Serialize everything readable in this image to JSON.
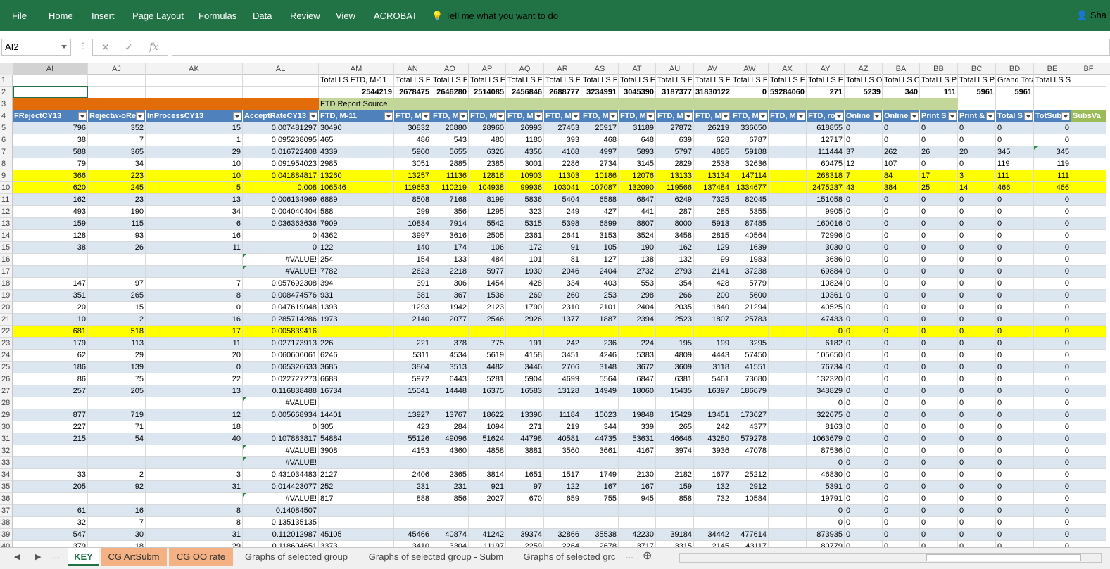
{
  "ribbon": {
    "tabs": [
      "File",
      "Home",
      "Insert",
      "Page Layout",
      "Formulas",
      "Data",
      "Review",
      "View",
      "ACROBAT"
    ],
    "tell_me": "Tell me what you want to do",
    "share": "Sha"
  },
  "formula_bar": {
    "name_box": "AI2",
    "formula": ""
  },
  "columns": [
    "AI",
    "AJ",
    "AK",
    "AL",
    "AM",
    "AN",
    "AO",
    "AP",
    "AQ",
    "AR",
    "AS",
    "AT",
    "AU",
    "AV",
    "AW",
    "AX",
    "AY",
    "AZ",
    "BA",
    "BB",
    "BC",
    "BD",
    "BE",
    "BF"
  ],
  "rows": {
    "1": {
      "AM": "Total LS FTD, M-11",
      "AN": "Total LS F",
      "AO": "Total LS F",
      "AP": "Total LS F",
      "AQ": "Total LS F",
      "AR": "Total LS F",
      "AS": "Total LS F",
      "AT": "Total LS F",
      "AU": "Total LS F",
      "AV": "Total LS F",
      "AW": "Total LS F",
      "AX": "Total LS F",
      "AY": "Total LS F",
      "AZ": "Total LS O",
      "BA": "Total LS O",
      "BB": "Total LS P",
      "BC": "Total LS P",
      "BD": "Grand Tota",
      "BE": "Total LS Subscription"
    },
    "2": {
      "AM": "2544219",
      "AN": "2678475",
      "AO": "2646280",
      "AP": "2514085",
      "AQ": "2456846",
      "AR": "2688777",
      "AS": "3234991",
      "AT": "3045390",
      "AU": "3187377",
      "AV": "31830122",
      "AW": "0",
      "AX": "59284060",
      "AY": "271",
      "AZ": "5239",
      "BA": "340",
      "BB": "111",
      "BC": "5961",
      "BD": "5961"
    },
    "3": {
      "AM": "FTD Report Source"
    },
    "4": {
      "AI": "FRejectCY13",
      "AJ": "Rejectw-oRe",
      "AK": "InProcessCY13",
      "AL": "AcceptRateCY13",
      "AM": "FTD, M-11",
      "AN": "FTD, M",
      "AO": "FTD, M",
      "AP": "FTD, M",
      "AQ": "FTD, M",
      "AR": "FTD, M",
      "AS": "FTD, M",
      "AT": "FTD, M",
      "AU": "FTD, M",
      "AV": "FTD, M",
      "AW": "FTD, M",
      "AX": "FTD, M",
      "AY": "FTD, ro",
      "AZ": "Online",
      "BA": "Online",
      "BB": "Print S",
      "BC": "Print &",
      "BD": "Total S",
      "BE": "TotSub",
      "BF": "SubsVa"
    },
    "5": {
      "AI": "796",
      "AJ": "352",
      "AK": "15",
      "AL": "0.007481297",
      "AM": "30490",
      "AN": "30832",
      "AO": "26880",
      "AP": "28960",
      "AQ": "26993",
      "AR": "27453",
      "AS": "25917",
      "AT": "31189",
      "AU": "27872",
      "AV": "26219",
      "AW": "336050",
      "AY": "618855",
      "AZ": "0",
      "BA": "0",
      "BB": "0",
      "BC": "0",
      "BD": "0",
      "BE": "0"
    },
    "6": {
      "AI": "38",
      "AJ": "7",
      "AK": "1",
      "AL": "0.095238095",
      "AM": "465",
      "AN": "486",
      "AO": "543",
      "AP": "480",
      "AQ": "1180",
      "AR": "393",
      "AS": "468",
      "AT": "648",
      "AU": "639",
      "AV": "628",
      "AW": "6787",
      "AY": "12717",
      "AZ": "0",
      "BA": "0",
      "BB": "0",
      "BC": "0",
      "BD": "0",
      "BE": "0"
    },
    "7": {
      "AI": "588",
      "AJ": "365",
      "AK": "29",
      "AL": "0.016722408",
      "AM": "4339",
      "AN": "5900",
      "AO": "5655",
      "AP": "6326",
      "AQ": "4356",
      "AR": "4108",
      "AS": "4997",
      "AT": "5893",
      "AU": "5797",
      "AV": "4885",
      "AW": "59188",
      "AY": "111444",
      "AZ": "37",
      "BA": "262",
      "BB": "26",
      "BC": "20",
      "BD": "345",
      "BE": "345"
    },
    "8": {
      "AI": "79",
      "AJ": "34",
      "AK": "10",
      "AL": "0.091954023",
      "AM": "2985",
      "AN": "3051",
      "AO": "2885",
      "AP": "2385",
      "AQ": "3001",
      "AR": "2286",
      "AS": "2734",
      "AT": "3145",
      "AU": "2829",
      "AV": "2538",
      "AW": "32636",
      "AY": "60475",
      "AZ": "12",
      "BA": "107",
      "BB": "0",
      "BC": "0",
      "BD": "119",
      "BE": "119"
    },
    "9": {
      "AI": "366",
      "AJ": "223",
      "AK": "10",
      "AL": "0.041884817",
      "AM": "13260",
      "AN": "13257",
      "AO": "11136",
      "AP": "12816",
      "AQ": "10903",
      "AR": "11303",
      "AS": "10186",
      "AT": "12076",
      "AU": "13133",
      "AV": "13134",
      "AW": "147114",
      "AY": "268318",
      "AZ": "7",
      "BA": "84",
      "BB": "17",
      "BC": "3",
      "BD": "111",
      "BE": "111"
    },
    "10": {
      "AI": "620",
      "AJ": "245",
      "AK": "5",
      "AL": "0.008",
      "AM": "106546",
      "AN": "119653",
      "AO": "110219",
      "AP": "104938",
      "AQ": "99936",
      "AR": "103041",
      "AS": "107087",
      "AT": "132090",
      "AU": "119566",
      "AV": "137484",
      "AW": "1334677",
      "AY": "2475237",
      "AZ": "43",
      "BA": "384",
      "BB": "25",
      "BC": "14",
      "BD": "466",
      "BE": "466"
    },
    "11": {
      "AI": "162",
      "AJ": "23",
      "AK": "13",
      "AL": "0.006134969",
      "AM": "6889",
      "AN": "8508",
      "AO": "7168",
      "AP": "8199",
      "AQ": "5836",
      "AR": "5404",
      "AS": "6588",
      "AT": "6847",
      "AU": "6249",
      "AV": "7325",
      "AW": "82045",
      "AY": "151058",
      "AZ": "0",
      "BA": "0",
      "BB": "0",
      "BC": "0",
      "BD": "0",
      "BE": "0"
    },
    "12": {
      "AI": "493",
      "AJ": "190",
      "AK": "34",
      "AL": "0.004040404",
      "AM": "588",
      "AN": "299",
      "AO": "356",
      "AP": "1295",
      "AQ": "323",
      "AR": "249",
      "AS": "427",
      "AT": "441",
      "AU": "287",
      "AV": "285",
      "AW": "5355",
      "AY": "9905",
      "AZ": "0",
      "BA": "0",
      "BB": "0",
      "BC": "0",
      "BD": "0",
      "BE": "0"
    },
    "13": {
      "AI": "159",
      "AJ": "115",
      "AK": "6",
      "AL": "0.036363636",
      "AM": "7909",
      "AN": "10834",
      "AO": "7914",
      "AP": "5542",
      "AQ": "5315",
      "AR": "5398",
      "AS": "6899",
      "AT": "8807",
      "AU": "8000",
      "AV": "5913",
      "AW": "87485",
      "AY": "160016",
      "AZ": "0",
      "BA": "0",
      "BB": "0",
      "BC": "0",
      "BD": "0",
      "BE": "0"
    },
    "14": {
      "AI": "128",
      "AJ": "93",
      "AK": "16",
      "AL": "0",
      "AM": "4362",
      "AN": "3997",
      "AO": "3616",
      "AP": "2505",
      "AQ": "2361",
      "AR": "2641",
      "AS": "3153",
      "AT": "3524",
      "AU": "3458",
      "AV": "2815",
      "AW": "40564",
      "AY": "72996",
      "AZ": "0",
      "BA": "0",
      "BB": "0",
      "BC": "0",
      "BD": "0",
      "BE": "0"
    },
    "15": {
      "AI": "38",
      "AJ": "26",
      "AK": "11",
      "AL": "0",
      "AM": "122",
      "AN": "140",
      "AO": "174",
      "AP": "106",
      "AQ": "172",
      "AR": "91",
      "AS": "105",
      "AT": "190",
      "AU": "162",
      "AV": "129",
      "AW": "1639",
      "AY": "3030",
      "AZ": "0",
      "BA": "0",
      "BB": "0",
      "BC": "0",
      "BD": "0",
      "BE": "0"
    },
    "16": {
      "AL": "#VALUE!",
      "AM": "254",
      "AN": "154",
      "AO": "133",
      "AP": "484",
      "AQ": "101",
      "AR": "81",
      "AS": "127",
      "AT": "138",
      "AU": "132",
      "AV": "99",
      "AW": "1983",
      "AY": "3686",
      "AZ": "0",
      "BA": "0",
      "BB": "0",
      "BC": "0",
      "BD": "0",
      "BE": "0"
    },
    "17": {
      "AL": "#VALUE!",
      "AM": "7782",
      "AN": "2623",
      "AO": "2218",
      "AP": "5977",
      "AQ": "1930",
      "AR": "2046",
      "AS": "2404",
      "AT": "2732",
      "AU": "2793",
      "AV": "2141",
      "AW": "37238",
      "AY": "69884",
      "AZ": "0",
      "BA": "0",
      "BB": "0",
      "BC": "0",
      "BD": "0",
      "BE": "0"
    },
    "18": {
      "AI": "147",
      "AJ": "97",
      "AK": "7",
      "AL": "0.057692308",
      "AM": "394",
      "AN": "391",
      "AO": "306",
      "AP": "1454",
      "AQ": "428",
      "AR": "334",
      "AS": "403",
      "AT": "553",
      "AU": "354",
      "AV": "428",
      "AW": "5779",
      "AY": "10824",
      "AZ": "0",
      "BA": "0",
      "BB": "0",
      "BC": "0",
      "BD": "0",
      "BE": "0"
    },
    "19": {
      "AI": "351",
      "AJ": "265",
      "AK": "8",
      "AL": "0.008474576",
      "AM": "931",
      "AN": "381",
      "AO": "367",
      "AP": "1536",
      "AQ": "269",
      "AR": "260",
      "AS": "253",
      "AT": "298",
      "AU": "266",
      "AV": "200",
      "AW": "5600",
      "AY": "10361",
      "AZ": "0",
      "BA": "0",
      "BB": "0",
      "BC": "0",
      "BD": "0",
      "BE": "0"
    },
    "20": {
      "AI": "20",
      "AJ": "15",
      "AK": "0",
      "AL": "0.047619048",
      "AM": "1393",
      "AN": "1293",
      "AO": "1942",
      "AP": "2123",
      "AQ": "1790",
      "AR": "2310",
      "AS": "2101",
      "AT": "2404",
      "AU": "2035",
      "AV": "1840",
      "AW": "21294",
      "AY": "40525",
      "AZ": "0",
      "BA": "0",
      "BB": "0",
      "BC": "0",
      "BD": "0",
      "BE": "0"
    },
    "21": {
      "AI": "10",
      "AJ": "2",
      "AK": "16",
      "AL": "0.285714286",
      "AM": "1973",
      "AN": "2140",
      "AO": "2077",
      "AP": "2546",
      "AQ": "2926",
      "AR": "1377",
      "AS": "1887",
      "AT": "2394",
      "AU": "2523",
      "AV": "1807",
      "AW": "25783",
      "AY": "47433",
      "AZ": "0",
      "BA": "0",
      "BB": "0",
      "BC": "0",
      "BD": "0",
      "BE": "0"
    },
    "22": {
      "AI": "681",
      "AJ": "518",
      "AK": "17",
      "AL": "0.005839416",
      "AY": "0",
      "AZ": "0",
      "BA": "0",
      "BB": "0",
      "BC": "0",
      "BD": "0",
      "BE": "0"
    },
    "23": {
      "AI": "179",
      "AJ": "113",
      "AK": "11",
      "AL": "0.027173913",
      "AM": "226",
      "AN": "221",
      "AO": "378",
      "AP": "775",
      "AQ": "191",
      "AR": "242",
      "AS": "236",
      "AT": "224",
      "AU": "195",
      "AV": "199",
      "AW": "3295",
      "AY": "6182",
      "AZ": "0",
      "BA": "0",
      "BB": "0",
      "BC": "0",
      "BD": "0",
      "BE": "0"
    },
    "24": {
      "AI": "62",
      "AJ": "29",
      "AK": "20",
      "AL": "0.060606061",
      "AM": "6246",
      "AN": "5311",
      "AO": "4534",
      "AP": "5619",
      "AQ": "4158",
      "AR": "3451",
      "AS": "4246",
      "AT": "5383",
      "AU": "4809",
      "AV": "4443",
      "AW": "57450",
      "AY": "105650",
      "AZ": "0",
      "BA": "0",
      "BB": "0",
      "BC": "0",
      "BD": "0",
      "BE": "0"
    },
    "25": {
      "AI": "186",
      "AJ": "139",
      "AK": "0",
      "AL": "0.065326633",
      "AM": "3685",
      "AN": "3804",
      "AO": "3513",
      "AP": "4482",
      "AQ": "3446",
      "AR": "2706",
      "AS": "3148",
      "AT": "3672",
      "AU": "3609",
      "AV": "3118",
      "AW": "41551",
      "AY": "76734",
      "AZ": "0",
      "BA": "0",
      "BB": "0",
      "BC": "0",
      "BD": "0",
      "BE": "0"
    },
    "26": {
      "AI": "86",
      "AJ": "75",
      "AK": "22",
      "AL": "0.022727273",
      "AM": "6688",
      "AN": "5972",
      "AO": "6443",
      "AP": "5281",
      "AQ": "5904",
      "AR": "4699",
      "AS": "5564",
      "AT": "6847",
      "AU": "6381",
      "AV": "5461",
      "AW": "73080",
      "AY": "132320",
      "AZ": "0",
      "BA": "0",
      "BB": "0",
      "BC": "0",
      "BD": "0",
      "BE": "0"
    },
    "27": {
      "AI": "257",
      "AJ": "205",
      "AK": "13",
      "AL": "0.116838488",
      "AM": "16734",
      "AN": "15041",
      "AO": "14448",
      "AP": "16375",
      "AQ": "16583",
      "AR": "13128",
      "AS": "14949",
      "AT": "18060",
      "AU": "15435",
      "AV": "16397",
      "AW": "186679",
      "AY": "343829",
      "AZ": "0",
      "BA": "0",
      "BB": "0",
      "BC": "0",
      "BD": "0",
      "BE": "0"
    },
    "28": {
      "AL": "#VALUE!",
      "AY": "0",
      "AZ": "0",
      "BA": "0",
      "BB": "0",
      "BC": "0",
      "BD": "0",
      "BE": "0"
    },
    "29": {
      "AI": "877",
      "AJ": "719",
      "AK": "12",
      "AL": "0.005668934",
      "AM": "14401",
      "AN": "13927",
      "AO": "13767",
      "AP": "18622",
      "AQ": "13396",
      "AR": "11184",
      "AS": "15023",
      "AT": "19848",
      "AU": "15429",
      "AV": "13451",
      "AW": "173627",
      "AY": "322675",
      "AZ": "0",
      "BA": "0",
      "BB": "0",
      "BC": "0",
      "BD": "0",
      "BE": "0"
    },
    "30": {
      "AI": "227",
      "AJ": "71",
      "AK": "18",
      "AL": "0",
      "AM": "305",
      "AN": "423",
      "AO": "284",
      "AP": "1094",
      "AQ": "271",
      "AR": "219",
      "AS": "344",
      "AT": "339",
      "AU": "265",
      "AV": "242",
      "AW": "4377",
      "AY": "8163",
      "AZ": "0",
      "BA": "0",
      "BB": "0",
      "BC": "0",
      "BD": "0",
      "BE": "0"
    },
    "31": {
      "AI": "215",
      "AJ": "54",
      "AK": "40",
      "AL": "0.107883817",
      "AM": "54884",
      "AN": "55126",
      "AO": "49096",
      "AP": "51624",
      "AQ": "44798",
      "AR": "40581",
      "AS": "44735",
      "AT": "53631",
      "AU": "46646",
      "AV": "43280",
      "AW": "579278",
      "AY": "1063679",
      "AZ": "0",
      "BA": "0",
      "BB": "0",
      "BC": "0",
      "BD": "0",
      "BE": "0"
    },
    "32": {
      "AL": "#VALUE!",
      "AM": "3908",
      "AN": "4153",
      "AO": "4360",
      "AP": "4858",
      "AQ": "3881",
      "AR": "3560",
      "AS": "3661",
      "AT": "4167",
      "AU": "3974",
      "AV": "3936",
      "AW": "47078",
      "AY": "87536",
      "AZ": "0",
      "BA": "0",
      "BB": "0",
      "BC": "0",
      "BD": "0",
      "BE": "0"
    },
    "33": {
      "AL": "#VALUE!",
      "AY": "0",
      "AZ": "0",
      "BA": "0",
      "BB": "0",
      "BC": "0",
      "BD": "0",
      "BE": "0"
    },
    "34": {
      "AI": "33",
      "AJ": "2",
      "AK": "3",
      "AL": "0.431034483",
      "AM": "2127",
      "AN": "2406",
      "AO": "2365",
      "AP": "3814",
      "AQ": "1651",
      "AR": "1517",
      "AS": "1749",
      "AT": "2130",
      "AU": "2182",
      "AV": "1677",
      "AW": "25212",
      "AY": "46830",
      "AZ": "0",
      "BA": "0",
      "BB": "0",
      "BC": "0",
      "BD": "0",
      "BE": "0"
    },
    "35": {
      "AI": "205",
      "AJ": "92",
      "AK": "31",
      "AL": "0.014423077",
      "AM": "252",
      "AN": "231",
      "AO": "231",
      "AP": "921",
      "AQ": "97",
      "AR": "122",
      "AS": "167",
      "AT": "167",
      "AU": "159",
      "AV": "132",
      "AW": "2912",
      "AY": "5391",
      "AZ": "0",
      "BA": "0",
      "BB": "0",
      "BC": "0",
      "BD": "0",
      "BE": "0"
    },
    "36": {
      "AL": "#VALUE!",
      "AM": "817",
      "AN": "888",
      "AO": "856",
      "AP": "2027",
      "AQ": "670",
      "AR": "659",
      "AS": "755",
      "AT": "945",
      "AU": "858",
      "AV": "732",
      "AW": "10584",
      "AY": "19791",
      "AZ": "0",
      "BA": "0",
      "BB": "0",
      "BC": "0",
      "BD": "0",
      "BE": "0"
    },
    "37": {
      "AI": "61",
      "AJ": "16",
      "AK": "8",
      "AL": "0.14084507",
      "AY": "0",
      "AZ": "0",
      "BA": "0",
      "BB": "0",
      "BC": "0",
      "BD": "0",
      "BE": "0"
    },
    "38": {
      "AI": "32",
      "AJ": "7",
      "AK": "8",
      "AL": "0.135135135",
      "AY": "0",
      "AZ": "0",
      "BA": "0",
      "BB": "0",
      "BC": "0",
      "BD": "0",
      "BE": "0"
    },
    "39": {
      "AI": "547",
      "AJ": "30",
      "AK": "31",
      "AL": "0.112012987",
      "AM": "45105",
      "AN": "45466",
      "AO": "40874",
      "AP": "41242",
      "AQ": "39374",
      "AR": "32866",
      "AS": "35538",
      "AT": "42230",
      "AU": "39184",
      "AV": "34442",
      "AW": "477614",
      "AY": "873935",
      "AZ": "0",
      "BA": "0",
      "BB": "0",
      "BC": "0",
      "BD": "0",
      "BE": "0"
    },
    "40": {
      "AI": "379",
      "AJ": "18",
      "AK": "29",
      "AL": "0.118604651",
      "AM": "3373",
      "AN": "3410",
      "AO": "3304",
      "AP": "11197",
      "AQ": "2259",
      "AR": "2264",
      "AS": "2678",
      "AT": "3717",
      "AU": "3315",
      "AV": "2145",
      "AW": "43117",
      "AY": "80779",
      "AZ": "0",
      "BA": "0",
      "BB": "0",
      "BC": "0",
      "BD": "0",
      "BE": "0"
    }
  },
  "sheet_tabs": [
    "KEY",
    "CG ArtSubm",
    "CG OO rate",
    "Graphs of selected group",
    "Graphs of selected group - Subm",
    "Graphs of selected grc"
  ],
  "tab_nav": {
    "ellipsis": "...",
    "more": "...",
    "add": "⊕"
  },
  "colors": {
    "ribbon": "#217346",
    "header_blue": "#4f81bd",
    "band": "#dce6f1",
    "highlight": "#ffff00",
    "orange": "#e36c0a",
    "green_bar": "#c4d79b"
  }
}
